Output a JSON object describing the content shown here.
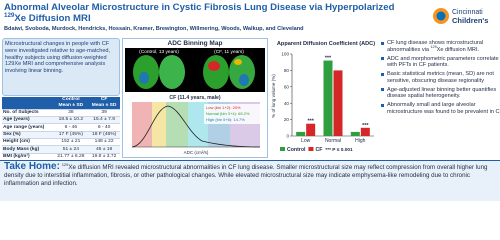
{
  "header": {
    "title": [
      "Abnormal Alveolar Microstructure in Cystic Fibrosis Lung Disease via Hyperpolarized ",
      "129",
      "Xe Diffusion MRI"
    ],
    "authors": "Bdaiwi, Svoboda, Murdock, Hendricks, Hossain, Kramer, Brewington, Willmering, Woods, Walkup, and Cleveland",
    "logo": [
      "Cincinnati",
      "Children's"
    ]
  },
  "summary": [
    "Microstructural changes in people with CF were investigated relative to age-matched, healthy subjects using diffusion-weighted 129Xe MRI and comprehensive analysis involving linear binning."
  ],
  "table": {
    "columns": [
      [
        "Control",
        "Mean ± SD"
      ],
      [
        "CF",
        "Mean ± SD"
      ]
    ],
    "rows": [
      [
        "No. of Subjects",
        "38",
        "39"
      ],
      [
        "Age (years)",
        "18.5 ± 10.2",
        "15.4 ± 7.9"
      ],
      [
        "Age range (years)",
        "6 - 46",
        "6 - 40"
      ],
      [
        "Sex (%)",
        "17 F (45%)",
        "18 F (46%)"
      ],
      [
        "Height (cm)",
        "152 ± 21",
        "148 ± 22"
      ],
      [
        "Body Mass (kg)",
        "51 ± 24",
        "46 ± 19"
      ],
      [
        "BMI (kg/m²)",
        "21.77 ± 6.28",
        "19.8 ± 3.72"
      ]
    ]
  },
  "binning_map": {
    "title": "ADC Binning Map",
    "labels": [
      "(Control, 13 years)",
      "(CF, 11 years)"
    ],
    "histogram_title": "CF (11.4 years, male)",
    "bins": [
      "Low (bin 1+2): 20%",
      "Normal (bin 3+4): 65.2%",
      "High (bin 5+6): 14.7%"
    ],
    "x_label": "ADC (cm²/s)"
  },
  "chart_data": {
    "type": "bar",
    "title": "Apparent Diffusion Coefficient (ADC)",
    "y_label": "% of lung volume (%)",
    "categories": [
      "Low",
      "Normal",
      "High"
    ],
    "series": [
      {
        "name": "Control",
        "color": "#2e9e3e",
        "values": [
          5,
          92,
          5
        ]
      },
      {
        "name": "CF",
        "color": "#d62728",
        "values": [
          15,
          80,
          10
        ]
      }
    ],
    "significance_labels": [
      "***",
      "***",
      "***"
    ],
    "p_note": "*** P ≤ 0.001",
    "ylim": [
      0,
      100
    ],
    "yticks": [
      0,
      20,
      40,
      60,
      80,
      100
    ],
    "legend": "bottom"
  },
  "bullets": [
    [
      "CF lung disease shows microstructural abnormalities via ",
      "129",
      "Xe diffusion MRI."
    ],
    [
      "ADC and morphometric parameters correlate with PFTs in CF patients."
    ],
    [
      "Basic statistical metrics (mean, SD) are not sensitive, obscuring disease regionality"
    ],
    [
      "Age-adjusted linear binning better quantifies disease spatial heterogeneity."
    ],
    [
      "Abnormally small and large alveolar microstructure was found to be prevalent in CF"
    ]
  ],
  "take_home": {
    "label": "Take Home:",
    "text": [
      "129",
      "Xe diffusion MRI revealed microstructural abnormalities in CF lung disease. Smaller microstructural size may reflect compression from overall higher lung density due to interstitial inflammation, fibrosis, or other pathological changes. While elevated microstructural size may indicate emphysema-like remodeling due to chronic inflammation and infection."
    ]
  }
}
